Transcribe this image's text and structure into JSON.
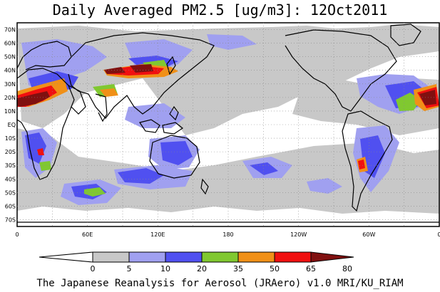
{
  "title": "Daily Averaged PM2.5 [ug/m3]: 12Oct2011",
  "footer": "The Japanese Reanalysis for Aerosol (JRAero) v1.0 MRI/KU_RIAM",
  "lat_labels": [
    "70N",
    "60N",
    "50N",
    "40N",
    "30N",
    "20N",
    "10N",
    "EQ",
    "10S",
    "20S",
    "30S",
    "40S",
    "50S",
    "60S",
    "70S"
  ],
  "lon_labels": [
    "0",
    "60E",
    "120E",
    "180",
    "120W",
    "60W",
    "0"
  ],
  "colorbar": {
    "labels": [
      "0",
      "5",
      "10",
      "20",
      "35",
      "50",
      "65",
      "80"
    ],
    "colors": [
      "#ffffff",
      "#c8c8c8",
      "#a0a0f0",
      "#5050f0",
      "#80c830",
      "#f09018",
      "#f01010",
      "#801010"
    ]
  }
}
